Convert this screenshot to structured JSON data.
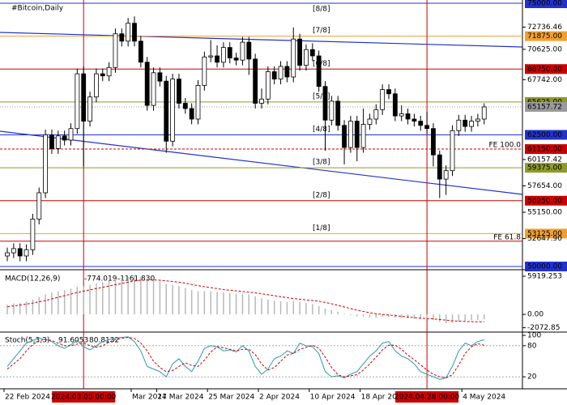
{
  "chart_data": {
    "type": "candlestick",
    "title": "#Bitcoin,Daily",
    "ylim": [
      50000,
      75000
    ],
    "candles": {
      "open": [
        51000,
        51300,
        51700,
        51000,
        51600,
        54500,
        57000,
        62500,
        61200,
        62400,
        62000,
        63100,
        68300,
        63800,
        66100,
        68300,
        68100,
        68900,
        72100,
        71400,
        73100,
        71400,
        69400,
        65300,
        68400,
        67600,
        61900,
        67800,
        65500,
        65000,
        64000,
        67200,
        69900,
        70000,
        69400,
        70800,
        69800,
        69600,
        71300,
        69700,
        65500,
        65900,
        68500,
        67800,
        69000,
        68000,
        71600,
        69100,
        70600,
        70000,
        67100,
        63900,
        65700,
        63400,
        61300,
        63800,
        61300,
        63500,
        64000,
        64900,
        66800,
        66400,
        64300,
        64500,
        64000,
        63800,
        63400,
        63100,
        60600,
        58300,
        59100,
        62900,
        63900,
        63300,
        63800,
        64000
      ],
      "high": [
        51800,
        52200,
        52200,
        52100,
        55000,
        57500,
        63000,
        63000,
        62900,
        62900,
        63600,
        68800,
        69000,
        66600,
        68800,
        68800,
        69400,
        72600,
        72600,
        73600,
        73750,
        71900,
        69900,
        68900,
        68900,
        68100,
        68300,
        68300,
        66000,
        65500,
        67700,
        70400,
        71500,
        71000,
        71300,
        71300,
        70300,
        71800,
        71800,
        70200,
        66900,
        69000,
        69000,
        69500,
        69500,
        72700,
        72100,
        71100,
        71200,
        70500,
        67600,
        66200,
        66200,
        63900,
        64300,
        64300,
        65000,
        64500,
        65400,
        67300,
        67300,
        66900,
        65300,
        65000,
        64500,
        64300,
        64700,
        63600,
        61000,
        59600,
        63400,
        64400,
        64400,
        64300,
        64500,
        65500
      ],
      "low": [
        50500,
        50800,
        50500,
        50500,
        51100,
        54000,
        56500,
        60700,
        60700,
        61500,
        61500,
        62600,
        59500,
        63300,
        65600,
        67600,
        67600,
        68400,
        70900,
        70900,
        70900,
        68900,
        64800,
        64800,
        67100,
        60800,
        61400,
        65000,
        64500,
        63500,
        63500,
        66700,
        69400,
        68900,
        68900,
        69300,
        69100,
        69100,
        68200,
        65000,
        65000,
        65400,
        67300,
        67300,
        67500,
        67500,
        68600,
        68600,
        69500,
        66600,
        61000,
        63400,
        62900,
        59700,
        60800,
        60000,
        60800,
        63000,
        63500,
        64400,
        65900,
        63800,
        63800,
        63500,
        63300,
        62900,
        62600,
        59500,
        56500,
        56800,
        58600,
        62400,
        62800,
        62800,
        63300,
        63500
      ],
      "close": [
        51300,
        51700,
        51000,
        51600,
        54500,
        57000,
        62500,
        61200,
        62400,
        62000,
        63100,
        68300,
        63800,
        66100,
        68300,
        68100,
        68900,
        72100,
        71400,
        73100,
        71400,
        69400,
        65300,
        68400,
        67600,
        61900,
        67800,
        65500,
        65000,
        64000,
        67200,
        69900,
        70000,
        69400,
        70800,
        69800,
        69600,
        71300,
        69700,
        65500,
        65900,
        68500,
        67800,
        69000,
        68000,
        71600,
        69100,
        70600,
        70000,
        67100,
        63900,
        65700,
        63400,
        61300,
        63800,
        61300,
        63500,
        64000,
        64900,
        66800,
        66400,
        64300,
        64500,
        64000,
        63800,
        63400,
        63100,
        60600,
        58300,
        59100,
        62900,
        63900,
        63300,
        63800,
        64000,
        65157.72
      ]
    },
    "levels": [
      {
        "value": 75000,
        "label": "75000.00",
        "murrey": "[8/8]",
        "color": "#2233cc"
      },
      {
        "value": 71875,
        "label": "71875.00",
        "murrey": "[7/8]",
        "color": "#f0a030"
      },
      {
        "value": 68750,
        "label": "68750.00",
        "murrey": "[6/8]",
        "color": "#cc0000"
      },
      {
        "value": 65625,
        "label": "65625.00",
        "murrey": "[5/8]",
        "color": "#8f9a2a"
      },
      {
        "value": 62500,
        "label": "62500.00",
        "murrey": "[4/8]",
        "color": "#2233cc"
      },
      {
        "value": 59375,
        "label": "59375.00",
        "murrey": "[3/8]",
        "color": "#8f9a2a"
      },
      {
        "value": 56250,
        "label": "56250.00",
        "murrey": "[2/8]",
        "color": "#cc0000"
      },
      {
        "value": 53125,
        "label": "53125.00",
        "murrey": "[1/8]",
        "color": "#f0a030"
      },
      {
        "value": 50000,
        "label": "50000.00",
        "murrey": "[0/8]",
        "color": "#2233cc"
      }
    ],
    "yticks": [
      {
        "value": 72736.46,
        "label": "72736.46"
      },
      {
        "value": 70625,
        "label": "70625.00"
      },
      {
        "value": 67742,
        "label": "67742.00"
      },
      {
        "value": 60157.42,
        "label": "60157.42"
      },
      {
        "value": 57654,
        "label": "57654.00"
      },
      {
        "value": 55150,
        "label": "55150.00"
      },
      {
        "value": 52647.9,
        "label": "52647.90"
      }
    ],
    "current_price": {
      "value": 65157.72,
      "label": "65157.72",
      "color": "#9a9a9a"
    },
    "fe_levels": [
      {
        "value": 61150,
        "label": "61150.00",
        "text": "FE 100.0",
        "color": "#cc0000"
      },
      {
        "value": 52400,
        "text": "FE 61.8",
        "color": "#cc0000"
      }
    ],
    "x_tick_labels": [
      {
        "index": 0,
        "label": "22 Feb 2024"
      },
      {
        "index": 20,
        "label": "Mar 2024"
      },
      {
        "index": 24,
        "label": "17 Mar 2024"
      },
      {
        "index": 32,
        "label": "25 Mar 2024"
      },
      {
        "index": 40,
        "label": "2 Apr 2024"
      },
      {
        "index": 48,
        "label": "10 Apr 2024"
      },
      {
        "index": 56,
        "label": "18 Apr 20"
      },
      {
        "index": 72,
        "label": "4 May 2024"
      }
    ],
    "markers": [
      {
        "index": 12,
        "label": "2024.03.05 00:00",
        "color": "#cc0000"
      },
      {
        "index": 66,
        "label": "2024.04.28 00:00",
        "color": "#cc0000"
      }
    ],
    "macd": {
      "label": "MACD(12,26,9)",
      "current": {
        "values": [
          -774.019,
          -1161.83
        ],
        "value_labels": [
          "-774.019",
          "-1161.830"
        ]
      },
      "ylim": [
        -2500,
        6300
      ],
      "yticks": [
        {
          "value": 5919.253,
          "label": "5919.253"
        },
        {
          "value": 0,
          "label": "0.00"
        },
        {
          "value": -2072.85,
          "label": "-2072.85"
        }
      ],
      "hist": [
        1500,
        1700,
        1800,
        2000,
        2300,
        2700,
        3100,
        3400,
        3600,
        3800,
        4000,
        4300,
        4400,
        4600,
        4800,
        5000,
        5200,
        5500,
        5700,
        5800,
        5900,
        5800,
        5500,
        5300,
        5100,
        4700,
        4600,
        4400,
        4100,
        3800,
        3600,
        3600,
        3600,
        3500,
        3400,
        3300,
        3200,
        3200,
        3100,
        2800,
        2500,
        2300,
        2100,
        2000,
        1900,
        2000,
        1900,
        1800,
        1600,
        1300,
        900,
        700,
        400,
        100,
        -100,
        -300,
        -400,
        -500,
        -500,
        -400,
        -400,
        -500,
        -500,
        -600,
        -700,
        -700,
        -700,
        -900,
        -1200,
        -1400,
        -1300,
        -1100,
        -1000,
        -900,
        -850,
        -774.019
      ],
      "hist_color": "#b8b8b8",
      "signal": [
        1200,
        1300,
        1450,
        1600,
        1750,
        1950,
        2150,
        2400,
        2650,
        2900,
        3150,
        3400,
        3600,
        3800,
        4000,
        4200,
        4400,
        4600,
        4800,
        5000,
        5200,
        5300,
        5350,
        5350,
        5300,
        5200,
        5100,
        5000,
        4850,
        4650,
        4450,
        4300,
        4150,
        4000,
        3850,
        3750,
        3650,
        3550,
        3450,
        3350,
        3200,
        3050,
        2900,
        2750,
        2600,
        2450,
        2350,
        2250,
        2150,
        2050,
        1850,
        1650,
        1400,
        1150,
        900,
        650,
        450,
        250,
        100,
        0,
        -100,
        -200,
        -300,
        -400,
        -500,
        -600,
        -650,
        -700,
        -800,
        -900,
        -1000,
        -1050,
        -1100,
        -1130,
        -1150,
        -1161.83
      ],
      "signal_color": "#cc0000"
    },
    "stoch": {
      "label": "Stoch(5,3,3)",
      "current": [
        91.6053,
        80.8132
      ],
      "ylim": [
        0,
        100
      ],
      "yticks": [
        100,
        80,
        20
      ],
      "levels": [
        80,
        20
      ],
      "k": [
        40,
        55,
        70,
        85,
        90,
        95,
        92,
        88,
        80,
        75,
        82,
        90,
        78,
        72,
        80,
        88,
        92,
        95,
        96,
        97,
        88,
        70,
        40,
        35,
        30,
        20,
        45,
        55,
        40,
        30,
        50,
        75,
        80,
        78,
        70,
        72,
        68,
        80,
        70,
        40,
        25,
        35,
        55,
        60,
        70,
        65,
        85,
        80,
        78,
        65,
        30,
        20,
        22,
        18,
        25,
        30,
        45,
        60,
        70,
        85,
        88,
        70,
        60,
        55,
        45,
        30,
        25,
        20,
        15,
        18,
        40,
        70,
        85,
        80,
        88,
        91.6053
      ],
      "k_color": "#2a9aaa",
      "d": [
        35,
        45,
        55,
        70,
        82,
        90,
        92,
        90,
        85,
        80,
        80,
        83,
        85,
        80,
        77,
        80,
        87,
        92,
        94,
        96,
        94,
        85,
        70,
        50,
        38,
        30,
        32,
        40,
        47,
        42,
        40,
        52,
        68,
        78,
        76,
        73,
        70,
        73,
        73,
        63,
        45,
        33,
        38,
        50,
        62,
        65,
        73,
        77,
        81,
        75,
        58,
        38,
        24,
        20,
        22,
        24,
        33,
        45,
        58,
        72,
        81,
        81,
        73,
        62,
        53,
        43,
        33,
        25,
        20,
        18,
        24,
        43,
        65,
        78,
        84,
        80.8132
      ],
      "d_color": "#cc0000"
    }
  }
}
